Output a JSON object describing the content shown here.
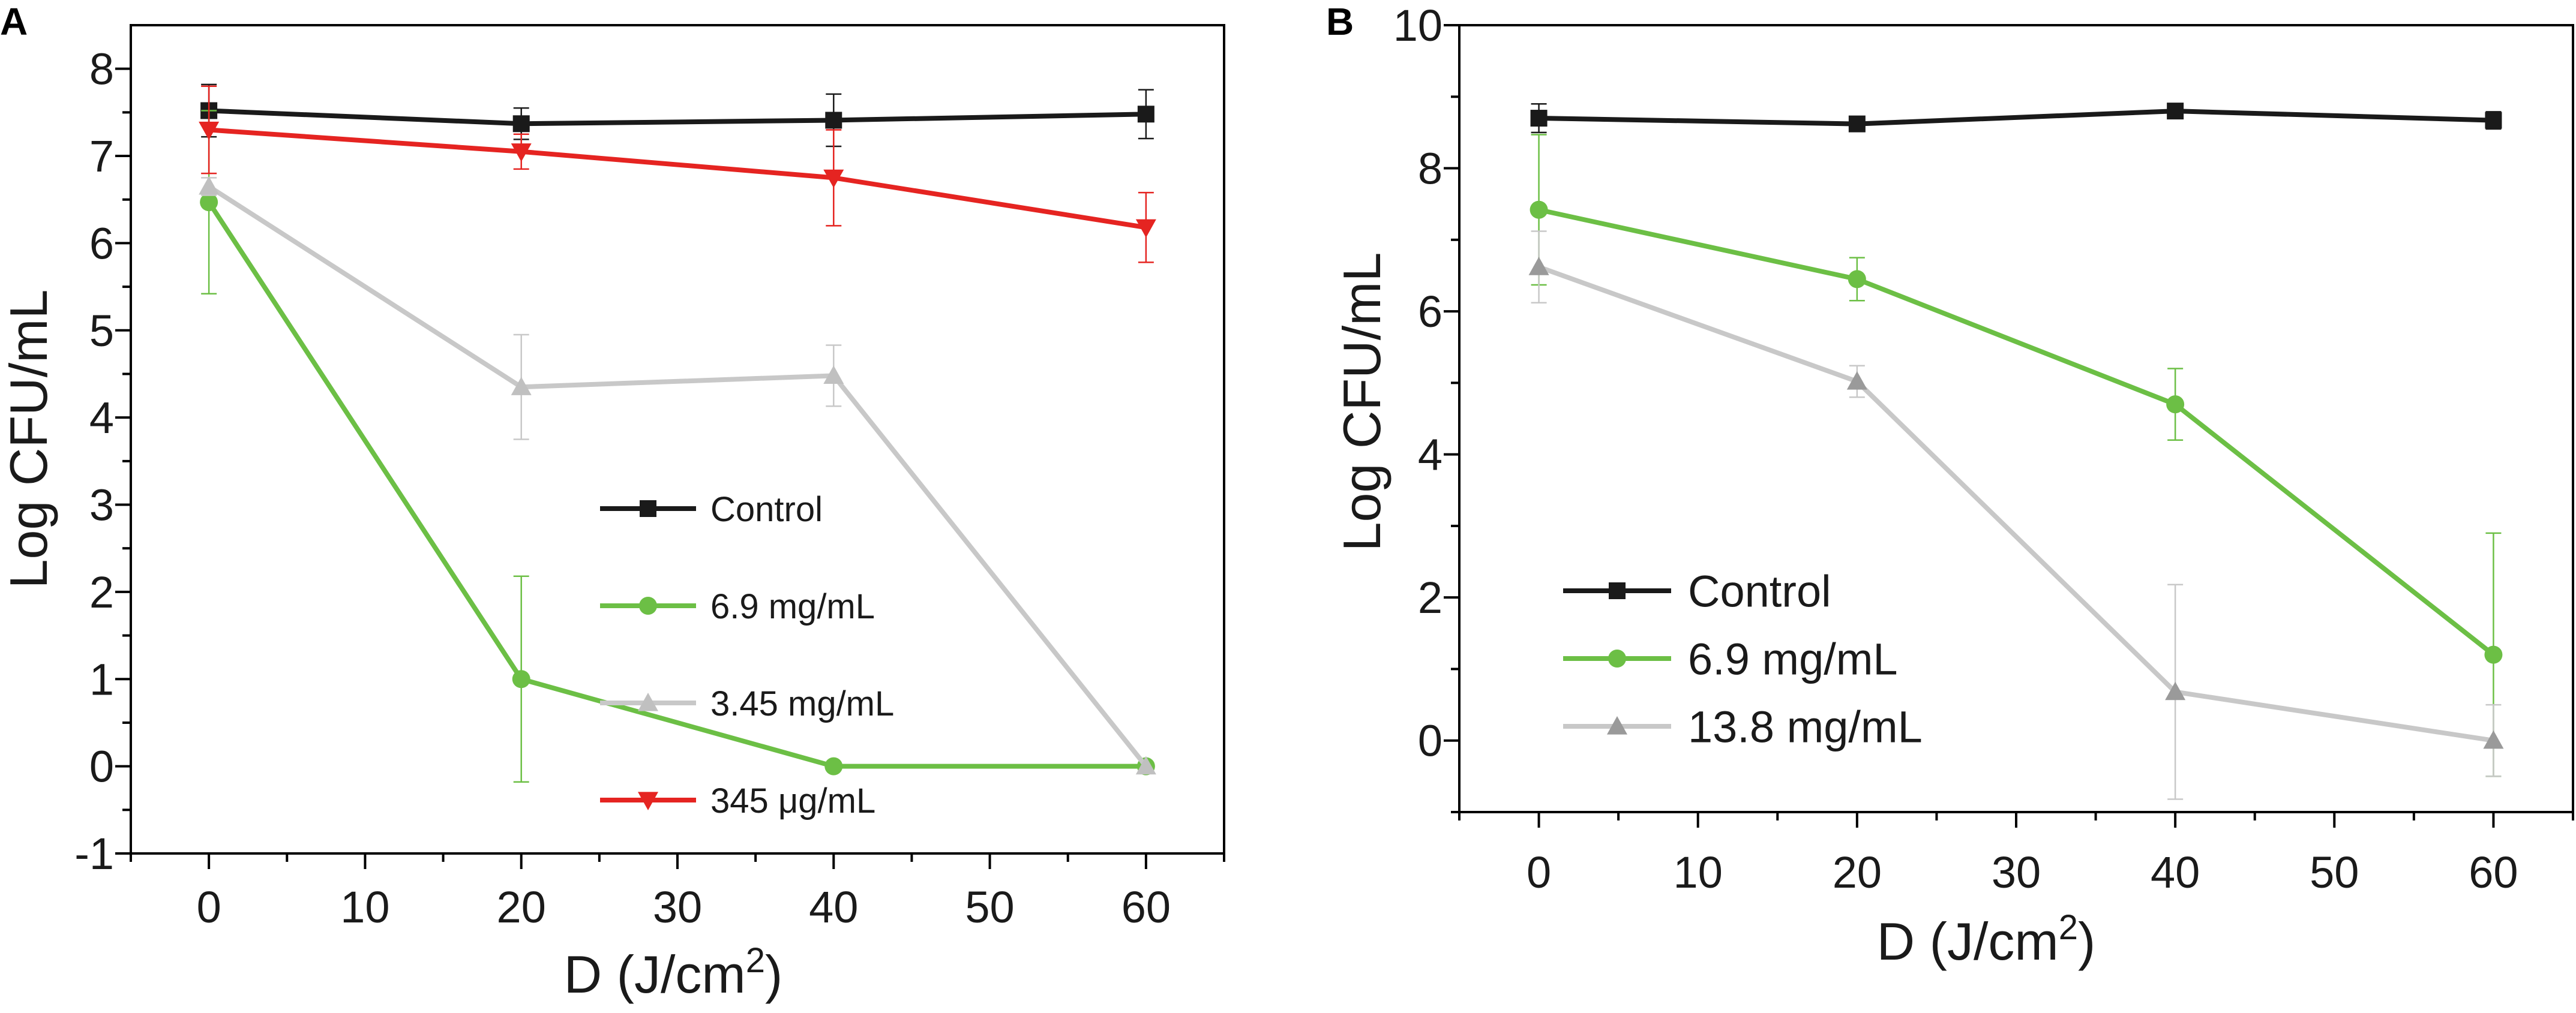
{
  "chart_data": [
    {
      "type": "line",
      "panel_label": "A",
      "xlabel": "D (J/cm",
      "xlabel_sup": "2",
      "xlabel_close": ")",
      "ylabel": "Log CFU/mL",
      "xlim": [
        -5,
        65
      ],
      "ylim": [
        -1,
        8.5
      ],
      "xticks": [
        0,
        10,
        20,
        30,
        40,
        50,
        60
      ],
      "yticks": [
        -1,
        0,
        1,
        2,
        3,
        4,
        5,
        6,
        7,
        8
      ],
      "legend_position": "center",
      "x": [
        0,
        20,
        40,
        60
      ],
      "series": [
        {
          "name": "Control",
          "color": "#1a1a1a",
          "marker": "square",
          "values": [
            7.52,
            7.37,
            7.41,
            7.48
          ],
          "errors": [
            0.3,
            0.18,
            0.3,
            0.28
          ]
        },
        {
          "name": "6.9 mg/mL",
          "color": "#6cbf45",
          "marker": "circle",
          "values": [
            6.47,
            1.0,
            0.0,
            0.0
          ],
          "errors": [
            1.05,
            1.18,
            0.0,
            0.0
          ]
        },
        {
          "name": "3.45 mg/mL",
          "color": "#c8c8c8",
          "marker": "triangle-up",
          "values": [
            6.65,
            4.35,
            4.48,
            0.0
          ],
          "errors": [
            0.1,
            0.6,
            0.35,
            0.0
          ]
        },
        {
          "name": "345 μg/mL",
          "color": "#e52421",
          "marker": "triangle-down",
          "values": [
            7.3,
            7.05,
            6.75,
            6.18
          ],
          "errors": [
            0.5,
            0.2,
            0.55,
            0.4
          ]
        }
      ]
    },
    {
      "type": "line",
      "panel_label": "B",
      "xlabel": "D (J/cm",
      "xlabel_sup": "2",
      "xlabel_close": ")",
      "ylabel": "Log CFU/mL",
      "xlim": [
        -5,
        65
      ],
      "ylim": [
        -1,
        10
      ],
      "xticks": [
        0,
        10,
        20,
        30,
        40,
        50,
        60
      ],
      "yticks": [
        0,
        2,
        4,
        6,
        8,
        10
      ],
      "legend_position": "bottom-left",
      "x": [
        0,
        20,
        40,
        60
      ],
      "series": [
        {
          "name": "Control",
          "color": "#1a1a1a",
          "marker": "square",
          "values": [
            8.7,
            8.62,
            8.8,
            8.67
          ],
          "errors": [
            0.2,
            0.08,
            0.08,
            0.12
          ]
        },
        {
          "name": "6.9 mg/mL",
          "color": "#6cbf45",
          "marker": "circle",
          "values": [
            7.42,
            6.45,
            4.7,
            1.2
          ],
          "errors": [
            1.05,
            0.3,
            0.5,
            1.7
          ]
        },
        {
          "name": "13.8 mg/mL",
          "color": "#c8c8c8",
          "marker": "triangle-up",
          "values": [
            6.62,
            5.02,
            0.68,
            0.0
          ],
          "errors": [
            0.5,
            0.22,
            1.5,
            0.5
          ]
        }
      ]
    }
  ]
}
